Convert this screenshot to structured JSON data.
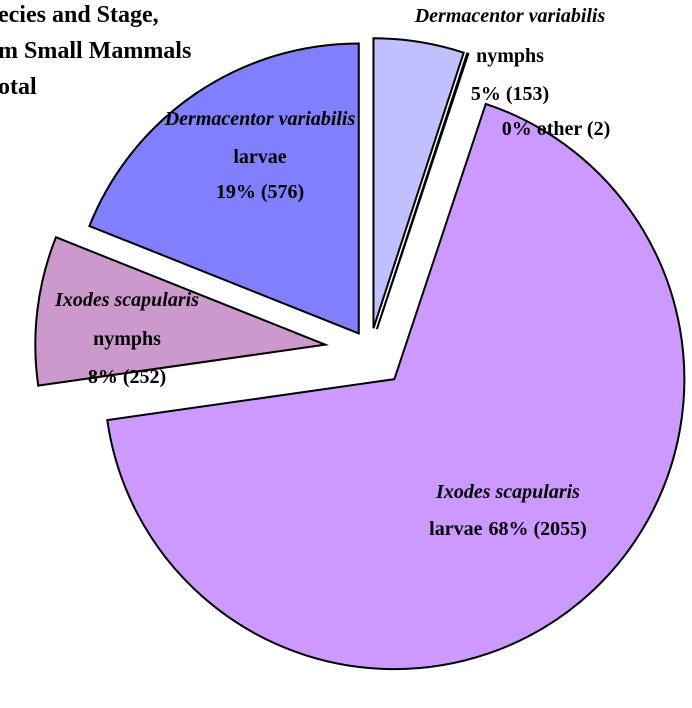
{
  "chart_data": {
    "type": "pie",
    "title_lines": [
      "ecies and Stage,",
      "m Small Mammals",
      "otal"
    ],
    "categories": [
      "Dermacentor variabilis",
      null,
      "Ixodes scapularis",
      "Ixodes scapularis",
      "Dermacentor variabilis"
    ],
    "stages": [
      "nymphs",
      null,
      "larvae",
      "nymphs",
      "larvae"
    ],
    "values": [
      153,
      2,
      2055,
      252,
      576
    ],
    "value_labels": [
      "5% (153)",
      "0% other (2)",
      "68% (2055)",
      "8% (252)",
      "19% (576)"
    ],
    "colors": [
      "#c0c0ff",
      "#ffffff",
      "#cc99ff",
      "#cc99cc",
      "#8080ff"
    ]
  }
}
